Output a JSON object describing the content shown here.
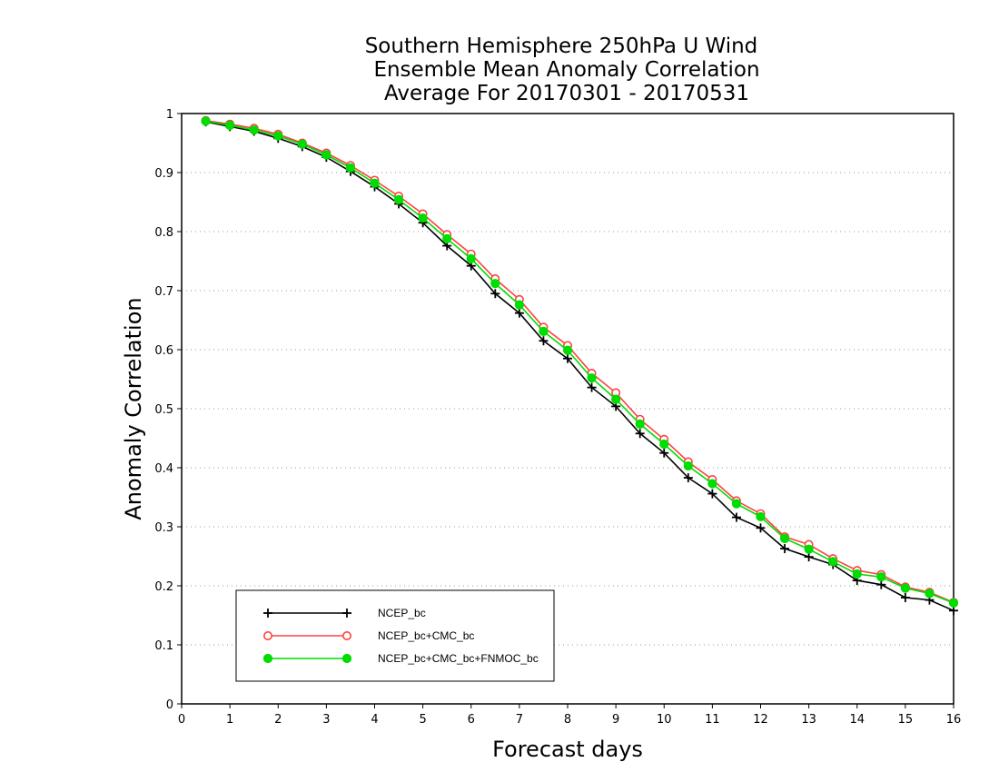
{
  "chart_data": {
    "type": "line",
    "title_lines": [
      "Southern Hemisphere 250hPa U Wind",
      "Ensemble Mean Anomaly Correlation",
      "Average For 20170301 - 20170531"
    ],
    "xlabel": "Forecast days",
    "ylabel": "Anomaly Correlation",
    "xlim": [
      0,
      16
    ],
    "ylim": [
      0,
      1
    ],
    "x_ticks": [
      "0",
      "1",
      "2",
      "3",
      "4",
      "5",
      "6",
      "7",
      "8",
      "9",
      "10",
      "11",
      "12",
      "13",
      "14",
      "15",
      "16"
    ],
    "y_ticks": [
      "0",
      "0.1",
      "0.2",
      "0.3",
      "0.4",
      "0.5",
      "0.6",
      "0.7",
      "0.8",
      "0.9",
      "1"
    ],
    "grid": "horizontal-dotted",
    "legend_position": "bottom-left",
    "x": [
      0.5,
      1,
      1.5,
      2,
      2.5,
      3,
      3.5,
      4,
      4.5,
      5,
      5.5,
      6,
      6.5,
      7,
      7.5,
      8,
      8.5,
      9,
      9.5,
      10,
      10.5,
      11,
      11.5,
      12,
      12.5,
      13,
      13.5,
      14,
      14.5,
      15,
      15.5,
      16
    ],
    "series": [
      {
        "name": "NCEP_bc",
        "color": "#000000",
        "marker": "plus",
        "values": [
          0.986,
          0.978,
          0.97,
          0.958,
          0.944,
          0.926,
          0.902,
          0.876,
          0.847,
          0.815,
          0.776,
          0.742,
          0.695,
          0.662,
          0.615,
          0.585,
          0.536,
          0.504,
          0.458,
          0.425,
          0.383,
          0.356,
          0.316,
          0.298,
          0.263,
          0.249,
          0.236,
          0.209,
          0.202,
          0.18,
          0.176,
          0.158
        ]
      },
      {
        "name": "NCEP_bc+CMC_bc",
        "color": "#ff4040",
        "marker": "open-circle",
        "values": [
          0.988,
          0.982,
          0.975,
          0.965,
          0.95,
          0.933,
          0.912,
          0.887,
          0.86,
          0.83,
          0.795,
          0.762,
          0.72,
          0.685,
          0.638,
          0.607,
          0.56,
          0.527,
          0.482,
          0.448,
          0.41,
          0.38,
          0.344,
          0.322,
          0.283,
          0.27,
          0.246,
          0.226,
          0.219,
          0.198,
          0.189,
          0.172
        ]
      },
      {
        "name": "NCEP_bc+CMC_bc+FNMOC_bc",
        "color": "#00dd00",
        "marker": "filled-circle",
        "values": [
          0.987,
          0.98,
          0.972,
          0.962,
          0.948,
          0.93,
          0.908,
          0.882,
          0.854,
          0.823,
          0.788,
          0.754,
          0.712,
          0.676,
          0.631,
          0.599,
          0.552,
          0.516,
          0.474,
          0.44,
          0.403,
          0.373,
          0.339,
          0.317,
          0.28,
          0.262,
          0.241,
          0.22,
          0.215,
          0.196,
          0.187,
          0.171
        ]
      }
    ]
  }
}
